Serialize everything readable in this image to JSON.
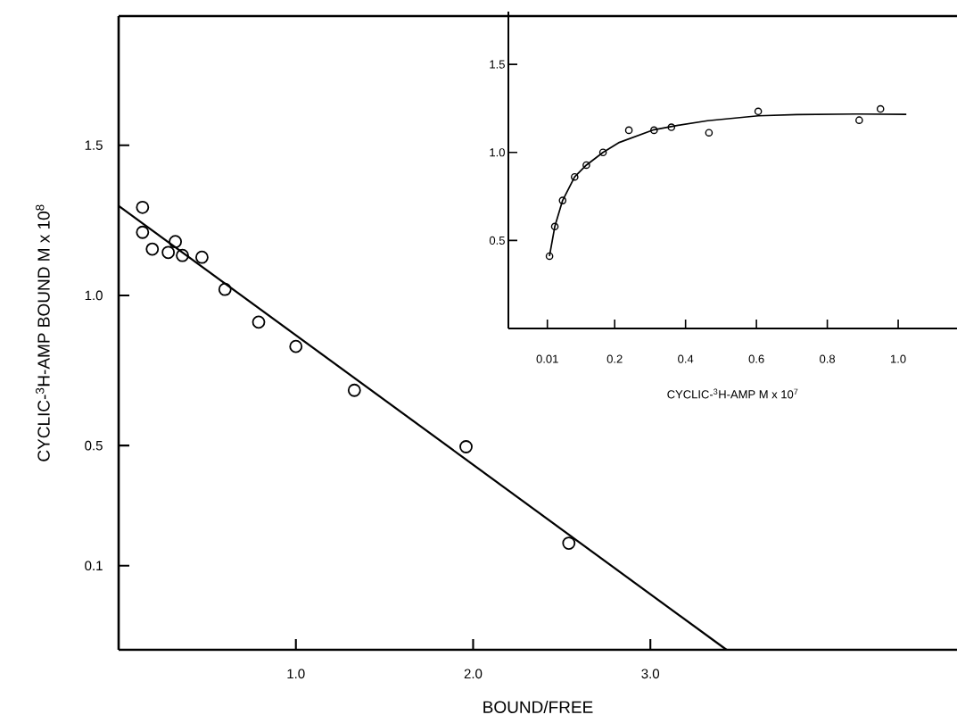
{
  "chart_data": [
    {
      "type": "scatter",
      "xlabel": "BOUND/FREE",
      "ylabel": "CYCLIC-$^{3}$H-AMP  BOUND   M x 10$^{8}$",
      "marker": "circle",
      "series": [
        {
          "color": "#000000",
          "x": [
            0.135,
            0.135,
            0.19,
            0.28,
            0.32,
            0.36,
            0.47,
            0.6,
            0.79,
            1.0,
            1.33,
            1.96,
            2.54
          ],
          "values": [
            1.293,
            1.21,
            1.154,
            1.143,
            1.179,
            1.133,
            1.127,
            1.02,
            0.911,
            0.83,
            0.684,
            0.496,
            0.175
          ]
        },
        {
          "type": "line",
          "marker": "none",
          "color": "#000000",
          "x": [
            0,
            3.43
          ],
          "values": [
            1.298,
            -0.18
          ]
        }
      ],
      "xlim": [
        0,
        4.73
      ],
      "ylim": [
        -0.18,
        1.93
      ],
      "xticks": [
        {
          "value": 1,
          "label": "1.0"
        },
        {
          "value": 2,
          "label": "2.0"
        },
        {
          "value": 3,
          "label": "3.0"
        }
      ],
      "yticks": [
        0.1,
        0.5,
        {
          "value": 1,
          "label": "1.0"
        },
        1.5
      ]
    },
    {
      "type": "scatter",
      "xlabel": "CYCLIC-$^{3}$H-AMP    M x 10$^{7}$",
      "marker": "circle",
      "series": [
        {
          "color": "#000000",
          "x": [
            0.016,
            0.031,
            0.053,
            0.087,
            0.12,
            0.167,
            0.24,
            0.311,
            0.36,
            0.466,
            0.605,
            0.89,
            0.95
          ],
          "values": [
            0.411,
            0.579,
            0.727,
            0.861,
            0.928,
            1.0,
            1.126,
            1.126,
            1.143,
            1.112,
            1.233,
            1.183,
            1.247
          ]
        },
        {
          "type": "line",
          "marker": "none",
          "color": "#000000",
          "x": [
            0.016,
            0.031,
            0.053,
            0.087,
            0.12,
            0.167,
            0.211,
            0.311,
            0.379,
            0.462,
            0.605,
            0.714,
            0.882,
            1.023
          ],
          "values": [
            0.411,
            0.579,
            0.727,
            0.861,
            0.928,
            1.0,
            1.055,
            1.129,
            1.154,
            1.18,
            1.208,
            1.215,
            1.218,
            1.216
          ]
        }
      ],
      "xlim": [
        -0.1,
        1.166
      ],
      "ylim": [
        0,
        1.8
      ],
      "xticks": [
        0.01,
        0.2,
        0.4,
        0.6,
        0.8,
        {
          "value": 1,
          "label": "1.0"
        }
      ],
      "yticks": [
        0.5,
        {
          "value": 1,
          "label": "1.0"
        },
        1.5
      ]
    }
  ]
}
